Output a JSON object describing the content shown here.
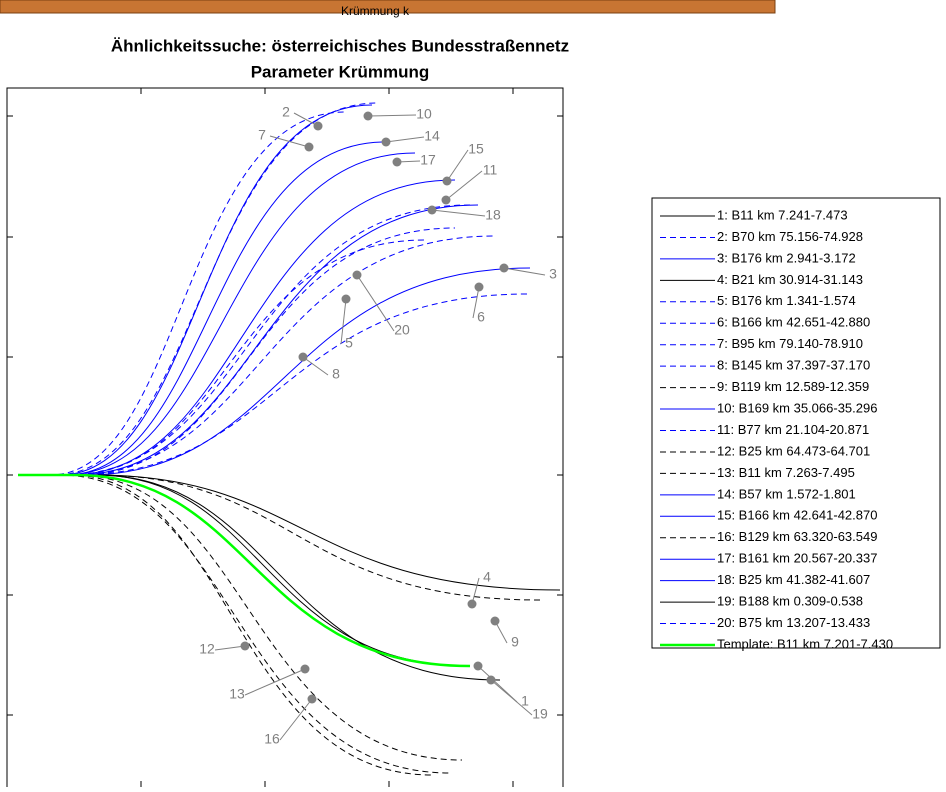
{
  "top_bar_label": "Krümmung k",
  "title": [
    "Ähnlichkeitssuche: österreichisches Bundesstraßennetz",
    "Parameter Krümmung"
  ],
  "legend": [
    {
      "label": "1: B11 km 7.241-7.473",
      "color": "#000000",
      "dashed": false
    },
    {
      "label": "2: B70 km 75.156-74.928",
      "color": "#0000ff",
      "dashed": true
    },
    {
      "label": "3: B176 km 2.941-3.172",
      "color": "#0000ff",
      "dashed": false
    },
    {
      "label": "4: B21 km 30.914-31.143",
      "color": "#000000",
      "dashed": false
    },
    {
      "label": "5: B176 km 1.341-1.574",
      "color": "#0000ff",
      "dashed": true
    },
    {
      "label": "6: B166 km 42.651-42.880",
      "color": "#0000ff",
      "dashed": true
    },
    {
      "label": "7: B95 km 79.140-78.910",
      "color": "#0000ff",
      "dashed": true
    },
    {
      "label": "8: B145 km 37.397-37.170",
      "color": "#0000ff",
      "dashed": true
    },
    {
      "label": "9: B119 km 12.589-12.359",
      "color": "#000000",
      "dashed": true
    },
    {
      "label": "10: B169 km 35.066-35.296",
      "color": "#0000ff",
      "dashed": false
    },
    {
      "label": "11: B77 km 21.104-20.871",
      "color": "#0000ff",
      "dashed": true
    },
    {
      "label": "12: B25 km 64.473-64.701",
      "color": "#000000",
      "dashed": true
    },
    {
      "label": "13: B11 km 7.263-7.495",
      "color": "#000000",
      "dashed": true
    },
    {
      "label": "14: B57 km 1.572-1.801",
      "color": "#0000ff",
      "dashed": false
    },
    {
      "label": "15: B166 km 42.641-42.870",
      "color": "#0000ff",
      "dashed": false
    },
    {
      "label": "16: B129 km 63.320-63.549",
      "color": "#000000",
      "dashed": true
    },
    {
      "label": "17: B161 km 20.567-20.337",
      "color": "#0000ff",
      "dashed": false
    },
    {
      "label": "18: B25 km 41.382-41.607",
      "color": "#0000ff",
      "dashed": false
    },
    {
      "label": "19: B188 km 0.309-0.538",
      "color": "#000000",
      "dashed": false
    },
    {
      "label": "20: B75 km 13.207-13.433",
      "color": "#0000ff",
      "dashed": true
    },
    {
      "label": "Template: B11 km 7.201-7.430",
      "color": "#00ff00",
      "dashed": false
    }
  ],
  "annotations": [
    "1",
    "2",
    "3",
    "4",
    "5",
    "6",
    "7",
    "8",
    "9",
    "10",
    "11",
    "12",
    "13",
    "14",
    "15",
    "16",
    "17",
    "18",
    "19",
    "20"
  ]
}
